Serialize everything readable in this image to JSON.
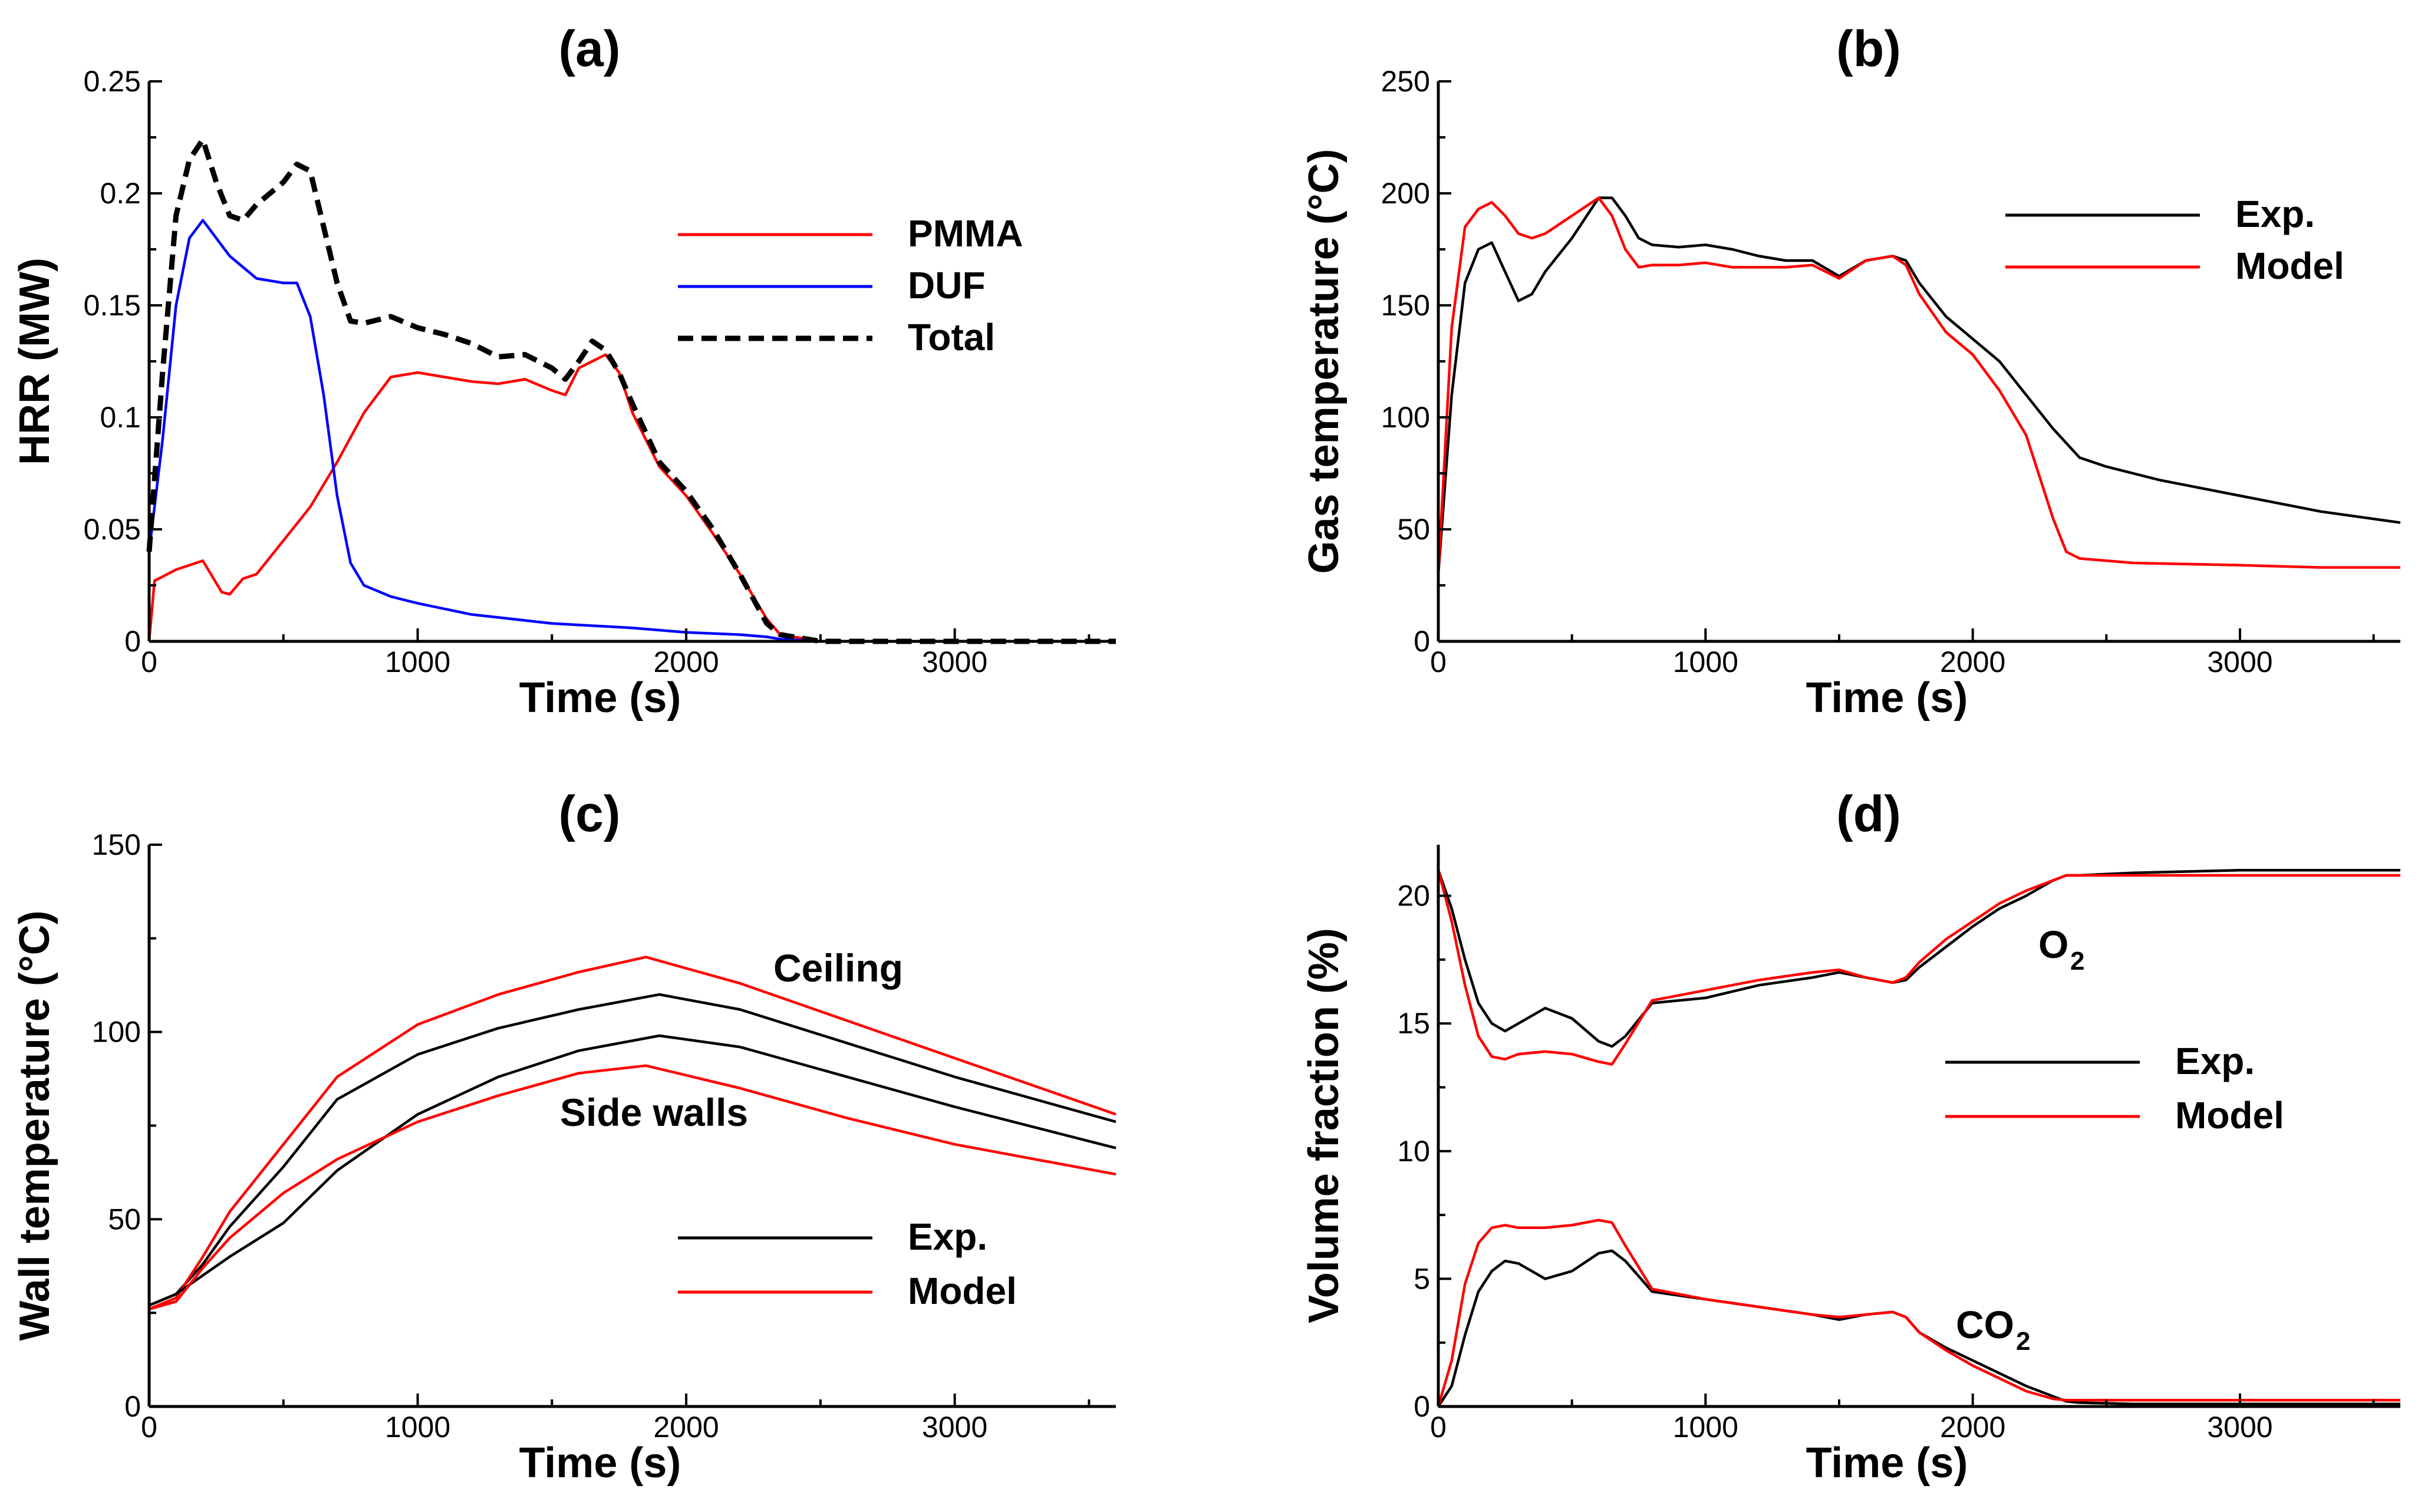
{
  "chart_data": [
    {
      "id": "a",
      "type": "line",
      "title": "(a)",
      "xlabel": "Time (s)",
      "ylabel": "HRR (MW)",
      "xlim": [
        0,
        3600
      ],
      "ylim": [
        0,
        0.25
      ],
      "xticks": [
        0,
        1000,
        2000,
        3000
      ],
      "xtick_labels": [
        "0",
        "1000",
        "2000",
        "3000"
      ],
      "yticks": [
        0,
        0.05,
        0.1,
        0.15,
        0.2,
        0.25
      ],
      "ytick_labels": [
        "0",
        "0.05",
        "0.1",
        "0.15",
        "0.2",
        "0.25"
      ],
      "legend_position": "top-right",
      "series": [
        {
          "name": "PMMA",
          "color": "#ff0000",
          "style": "solid",
          "x": [
            0,
            20,
            100,
            200,
            270,
            300,
            350,
            400,
            500,
            600,
            700,
            800,
            900,
            1000,
            1100,
            1200,
            1300,
            1400,
            1500,
            1550,
            1600,
            1700,
            1750,
            1800,
            1900,
            2000,
            2100,
            2200,
            2300,
            2350,
            2400,
            2500,
            3600
          ],
          "y": [
            0,
            0.027,
            0.032,
            0.036,
            0.022,
            0.021,
            0.028,
            0.03,
            0.045,
            0.06,
            0.08,
            0.102,
            0.118,
            0.12,
            0.118,
            0.116,
            0.115,
            0.117,
            0.112,
            0.11,
            0.122,
            0.128,
            0.12,
            0.102,
            0.078,
            0.065,
            0.048,
            0.03,
            0.01,
            0.003,
            0.002,
            0.0,
            0.0
          ]
        },
        {
          "name": "DUF",
          "color": "#0000ff",
          "style": "solid",
          "x": [
            0,
            50,
            100,
            150,
            200,
            300,
            400,
            500,
            550,
            600,
            650,
            700,
            750,
            800,
            900,
            1000,
            1200,
            1500,
            1800,
            2000,
            2200,
            2300,
            2350,
            2500,
            3600
          ],
          "y": [
            0.04,
            0.09,
            0.15,
            0.18,
            0.188,
            0.172,
            0.162,
            0.16,
            0.16,
            0.145,
            0.11,
            0.065,
            0.035,
            0.025,
            0.02,
            0.017,
            0.012,
            0.008,
            0.006,
            0.004,
            0.003,
            0.002,
            0.001,
            0.0,
            0.0
          ]
        },
        {
          "name": "Total",
          "color": "#000000",
          "style": "dashed",
          "x": [
            0,
            50,
            100,
            150,
            200,
            250,
            300,
            350,
            400,
            450,
            500,
            550,
            600,
            650,
            700,
            750,
            800,
            900,
            1000,
            1100,
            1200,
            1300,
            1400,
            1500,
            1550,
            1600,
            1650,
            1700,
            1750,
            1800,
            1900,
            2000,
            2100,
            2200,
            2300,
            2350,
            2400,
            2500,
            3600
          ],
          "y": [
            0.04,
            0.12,
            0.19,
            0.215,
            0.224,
            0.205,
            0.19,
            0.188,
            0.195,
            0.2,
            0.205,
            0.213,
            0.21,
            0.185,
            0.16,
            0.143,
            0.142,
            0.145,
            0.14,
            0.137,
            0.133,
            0.127,
            0.128,
            0.122,
            0.117,
            0.125,
            0.134,
            0.13,
            0.12,
            0.106,
            0.08,
            0.067,
            0.05,
            0.03,
            0.008,
            0.003,
            0.002,
            0.0,
            0.0
          ]
        }
      ]
    },
    {
      "id": "b",
      "type": "line",
      "title": "(b)",
      "xlabel": "Time (s)",
      "ylabel": "Gas temperature (°C)",
      "xlim": [
        0,
        3600
      ],
      "ylim": [
        0,
        250
      ],
      "xticks": [
        0,
        1000,
        2000,
        3000
      ],
      "xtick_labels": [
        "0",
        "1000",
        "2000",
        "3000"
      ],
      "yticks": [
        0,
        50,
        100,
        150,
        200,
        250
      ],
      "ytick_labels": [
        "0",
        "50",
        "100",
        "150",
        "200",
        "250"
      ],
      "legend_position": "top-right",
      "series": [
        {
          "name": "Exp.",
          "color": "#000000",
          "style": "solid",
          "x": [
            0,
            50,
            100,
            150,
            200,
            250,
            300,
            350,
            400,
            500,
            600,
            650,
            700,
            750,
            800,
            900,
            1000,
            1100,
            1200,
            1300,
            1400,
            1500,
            1600,
            1700,
            1750,
            1800,
            1900,
            2000,
            2100,
            2200,
            2300,
            2400,
            2500,
            2700,
            3000,
            3300,
            3600
          ],
          "y": [
            30,
            110,
            160,
            175,
            178,
            165,
            152,
            155,
            165,
            180,
            198,
            198,
            190,
            180,
            177,
            176,
            177,
            175,
            172,
            170,
            170,
            163,
            170,
            172,
            170,
            160,
            145,
            135,
            125,
            110,
            95,
            82,
            78,
            72,
            65,
            58,
            53
          ]
        },
        {
          "name": "Model",
          "color": "#ff0000",
          "style": "solid",
          "x": [
            0,
            50,
            100,
            150,
            200,
            250,
            300,
            350,
            400,
            500,
            600,
            650,
            700,
            750,
            800,
            900,
            1000,
            1100,
            1200,
            1300,
            1400,
            1500,
            1600,
            1700,
            1750,
            1800,
            1900,
            2000,
            2100,
            2200,
            2300,
            2350,
            2400,
            2600,
            3000,
            3300,
            3600
          ],
          "y": [
            30,
            140,
            185,
            193,
            196,
            190,
            182,
            180,
            182,
            190,
            198,
            190,
            175,
            167,
            168,
            168,
            169,
            167,
            167,
            167,
            168,
            162,
            170,
            172,
            168,
            155,
            138,
            128,
            112,
            92,
            55,
            40,
            37,
            35,
            34,
            33,
            33
          ]
        }
      ]
    },
    {
      "id": "c",
      "type": "line",
      "title": "(c)",
      "xlabel": "Time (s)",
      "ylabel": "Wall temperature (°C)",
      "xlim": [
        0,
        3600
      ],
      "ylim": [
        0,
        150
      ],
      "xticks": [
        0,
        1000,
        2000,
        3000
      ],
      "xtick_labels": [
        "0",
        "1000",
        "2000",
        "3000"
      ],
      "yticks": [
        0,
        50,
        100,
        150
      ],
      "ytick_labels": [
        "0",
        "50",
        "100",
        "150"
      ],
      "legend_position": "bottom-right",
      "annotations": [
        "Ceiling",
        "Side walls"
      ],
      "series": [
        {
          "name": "Exp.",
          "color": "#000000",
          "style": "solid",
          "group": "Ceiling",
          "x": [
            0,
            100,
            200,
            300,
            500,
            700,
            1000,
            1300,
            1600,
            1900,
            2200,
            2600,
            3000,
            3600
          ],
          "y": [
            27,
            30,
            38,
            48,
            64,
            82,
            94,
            101,
            106,
            110,
            106,
            97,
            88,
            76
          ]
        },
        {
          "name": "Model",
          "color": "#ff0000",
          "style": "solid",
          "group": "Ceiling",
          "x": [
            0,
            100,
            200,
            300,
            500,
            700,
            1000,
            1300,
            1600,
            1850,
            2200,
            2600,
            3000,
            3600
          ],
          "y": [
            26,
            29,
            40,
            52,
            70,
            88,
            102,
            110,
            116,
            120,
            113,
            103,
            93,
            78
          ]
        },
        {
          "name": "Exp.",
          "color": "#000000",
          "style": "solid",
          "group": "Side walls",
          "x": [
            0,
            100,
            200,
            300,
            500,
            700,
            1000,
            1300,
            1600,
            1900,
            2200,
            2600,
            3000,
            3600
          ],
          "y": [
            27,
            30,
            35,
            40,
            49,
            63,
            78,
            88,
            95,
            99,
            96,
            88,
            80,
            69
          ]
        },
        {
          "name": "Model",
          "color": "#ff0000",
          "style": "solid",
          "group": "Side walls",
          "x": [
            0,
            100,
            200,
            300,
            500,
            700,
            1000,
            1300,
            1600,
            1850,
            2200,
            2600,
            3000,
            3600
          ],
          "y": [
            26,
            28,
            37,
            45,
            57,
            66,
            76,
            83,
            89,
            91,
            85,
            77,
            70,
            62
          ]
        }
      ]
    },
    {
      "id": "d",
      "type": "line",
      "title": "(d)",
      "xlabel": "Time (s)",
      "ylabel": "Volume fraction (%)",
      "xlim": [
        0,
        3600
      ],
      "ylim": [
        0,
        22
      ],
      "xticks": [
        0,
        1000,
        2000,
        3000
      ],
      "xtick_labels": [
        "0",
        "1000",
        "2000",
        "3000"
      ],
      "yticks": [
        0,
        5,
        10,
        15,
        20
      ],
      "ytick_labels": [
        "0",
        "5",
        "10",
        "15",
        "20"
      ],
      "legend_position": "right",
      "annotations": [
        "O",
        "2",
        "CO",
        "2"
      ],
      "series": [
        {
          "name": "Exp.",
          "color": "#000000",
          "style": "solid",
          "group": "O2",
          "x": [
            0,
            50,
            100,
            150,
            200,
            250,
            300,
            400,
            500,
            600,
            650,
            700,
            800,
            1000,
            1200,
            1400,
            1500,
            1600,
            1700,
            1750,
            1800,
            1900,
            2000,
            2100,
            2200,
            2300,
            2350,
            2400,
            2600,
            3000,
            3600
          ],
          "y": [
            21,
            19.5,
            17.5,
            15.8,
            15.0,
            14.7,
            15.0,
            15.6,
            15.2,
            14.3,
            14.1,
            14.5,
            15.8,
            16.0,
            16.5,
            16.8,
            17.0,
            16.8,
            16.6,
            16.7,
            17.2,
            18.0,
            18.8,
            19.5,
            20.0,
            20.6,
            20.8,
            20.8,
            20.9,
            21.0,
            21.0
          ]
        },
        {
          "name": "Model",
          "color": "#ff0000",
          "style": "solid",
          "group": "O2",
          "x": [
            0,
            50,
            100,
            150,
            200,
            250,
            300,
            400,
            500,
            600,
            650,
            700,
            800,
            1000,
            1200,
            1400,
            1500,
            1600,
            1700,
            1750,
            1800,
            1900,
            2000,
            2100,
            2200,
            2300,
            2350,
            2400,
            2600,
            3000,
            3600
          ],
          "y": [
            21,
            19.0,
            16.5,
            14.5,
            13.7,
            13.6,
            13.8,
            13.9,
            13.8,
            13.5,
            13.4,
            14.2,
            15.9,
            16.3,
            16.7,
            17.0,
            17.1,
            16.8,
            16.6,
            16.8,
            17.4,
            18.3,
            19.0,
            19.7,
            20.2,
            20.6,
            20.8,
            20.8,
            20.8,
            20.8,
            20.8
          ]
        },
        {
          "name": "Exp.",
          "color": "#000000",
          "style": "solid",
          "group": "CO2",
          "x": [
            0,
            50,
            100,
            150,
            200,
            250,
            300,
            400,
            500,
            600,
            650,
            700,
            800,
            1000,
            1200,
            1400,
            1500,
            1600,
            1700,
            1750,
            1800,
            1900,
            2000,
            2100,
            2200,
            2300,
            2350,
            2400,
            2600,
            3000,
            3600
          ],
          "y": [
            0,
            0.8,
            2.8,
            4.5,
            5.3,
            5.7,
            5.6,
            5.0,
            5.3,
            6.0,
            6.1,
            5.7,
            4.5,
            4.2,
            3.9,
            3.6,
            3.4,
            3.6,
            3.7,
            3.5,
            2.9,
            2.3,
            1.8,
            1.3,
            0.8,
            0.4,
            0.2,
            0.15,
            0.1,
            0.1,
            0.1
          ]
        },
        {
          "name": "Model",
          "color": "#ff0000",
          "style": "solid",
          "group": "CO2",
          "x": [
            0,
            50,
            100,
            150,
            200,
            250,
            300,
            400,
            500,
            600,
            650,
            700,
            800,
            1000,
            1200,
            1400,
            1500,
            1600,
            1700,
            1750,
            1800,
            1900,
            2000,
            2100,
            2200,
            2300,
            2350,
            2400,
            2600,
            3000,
            3600
          ],
          "y": [
            0,
            1.8,
            4.8,
            6.4,
            7.0,
            7.1,
            7.0,
            7.0,
            7.1,
            7.3,
            7.2,
            6.3,
            4.6,
            4.2,
            3.9,
            3.6,
            3.5,
            3.6,
            3.7,
            3.5,
            2.9,
            2.2,
            1.6,
            1.1,
            0.6,
            0.3,
            0.25,
            0.25,
            0.25,
            0.25,
            0.25
          ]
        }
      ]
    }
  ]
}
